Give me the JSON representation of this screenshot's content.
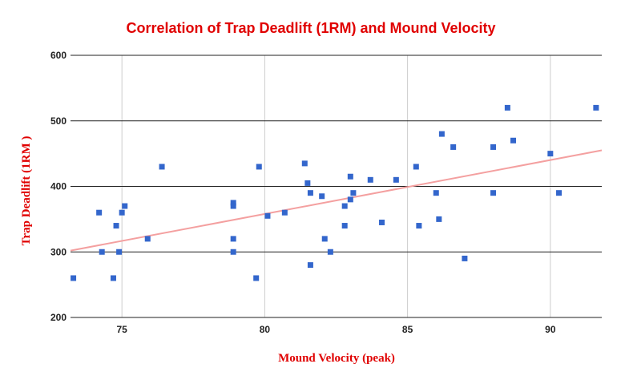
{
  "chart_data": {
    "type": "scatter",
    "title": "Correlation of Trap Deadlift (1RM) and Mound Velocity",
    "xlabel": "Mound Velocity (peak)",
    "ylabel": "Trap Deadlift (1RM )",
    "xlim": [
      73.2,
      91.8
    ],
    "ylim": [
      200,
      600
    ],
    "xticks": [
      75,
      80,
      85,
      90
    ],
    "yticks": [
      200,
      300,
      400,
      500,
      600
    ],
    "x_gridlines": "vertical, light gray",
    "y_gridlines": "horizontal, dark",
    "marker_color": "#3366cc",
    "trendline_color": "#f4a0a0",
    "trendline": {
      "type": "linear",
      "from": {
        "x": 73.2,
        "y": 302
      },
      "to": {
        "x": 91.8,
        "y": 455
      }
    },
    "points": [
      {
        "x": 73.3,
        "y": 260
      },
      {
        "x": 74.2,
        "y": 360
      },
      {
        "x": 74.3,
        "y": 300
      },
      {
        "x": 74.7,
        "y": 260
      },
      {
        "x": 74.8,
        "y": 340
      },
      {
        "x": 74.9,
        "y": 300
      },
      {
        "x": 75.0,
        "y": 360
      },
      {
        "x": 75.1,
        "y": 370
      },
      {
        "x": 75.9,
        "y": 320
      },
      {
        "x": 76.4,
        "y": 430
      },
      {
        "x": 78.9,
        "y": 375
      },
      {
        "x": 78.9,
        "y": 370
      },
      {
        "x": 78.9,
        "y": 320
      },
      {
        "x": 78.9,
        "y": 300
      },
      {
        "x": 79.7,
        "y": 260
      },
      {
        "x": 79.8,
        "y": 430
      },
      {
        "x": 80.1,
        "y": 355
      },
      {
        "x": 80.7,
        "y": 360
      },
      {
        "x": 81.4,
        "y": 435
      },
      {
        "x": 81.5,
        "y": 405
      },
      {
        "x": 81.6,
        "y": 390
      },
      {
        "x": 81.6,
        "y": 280
      },
      {
        "x": 82.0,
        "y": 385
      },
      {
        "x": 82.1,
        "y": 320
      },
      {
        "x": 82.3,
        "y": 300
      },
      {
        "x": 82.8,
        "y": 370
      },
      {
        "x": 82.8,
        "y": 340
      },
      {
        "x": 83.0,
        "y": 415
      },
      {
        "x": 83.0,
        "y": 380
      },
      {
        "x": 83.1,
        "y": 390
      },
      {
        "x": 83.7,
        "y": 410
      },
      {
        "x": 84.1,
        "y": 345
      },
      {
        "x": 84.6,
        "y": 410
      },
      {
        "x": 85.3,
        "y": 430
      },
      {
        "x": 85.4,
        "y": 340
      },
      {
        "x": 86.0,
        "y": 390
      },
      {
        "x": 86.1,
        "y": 350
      },
      {
        "x": 86.2,
        "y": 480
      },
      {
        "x": 86.6,
        "y": 460
      },
      {
        "x": 87.0,
        "y": 290
      },
      {
        "x": 88.0,
        "y": 460
      },
      {
        "x": 88.0,
        "y": 390
      },
      {
        "x": 88.5,
        "y": 520
      },
      {
        "x": 88.7,
        "y": 470
      },
      {
        "x": 90.0,
        "y": 450
      },
      {
        "x": 90.3,
        "y": 390
      },
      {
        "x": 91.6,
        "y": 520
      }
    ]
  }
}
